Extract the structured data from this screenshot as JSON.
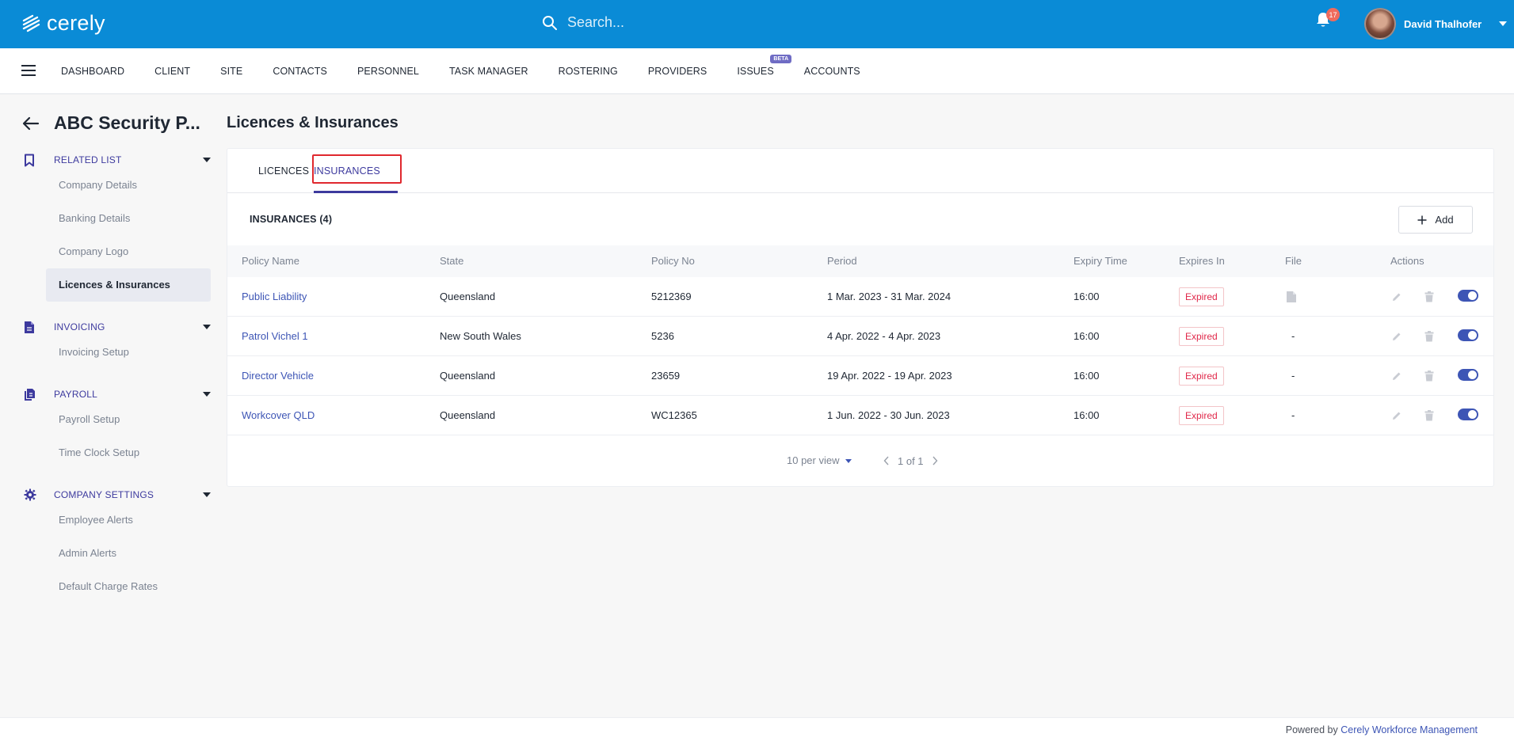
{
  "app": {
    "brand": "cerely",
    "search_placeholder": "Search...",
    "notifications_count": "17",
    "user_name": "David Thalhofer"
  },
  "nav": {
    "items": [
      "DASHBOARD",
      "CLIENT",
      "SITE",
      "CONTACTS",
      "PERSONNEL",
      "TASK MANAGER",
      "ROSTERING",
      "PROVIDERS",
      "ISSUES",
      "ACCOUNTS"
    ],
    "issues_badge": "BETA"
  },
  "sidebar": {
    "company_title": "ABC Security P...",
    "sections": [
      {
        "label": "RELATED LIST",
        "icon": "bookmark-icon",
        "items": [
          "Company Details",
          "Banking Details",
          "Company Logo",
          "Licences & Insurances"
        ]
      },
      {
        "label": "INVOICING",
        "icon": "document-icon",
        "items": [
          "Invoicing Setup"
        ]
      },
      {
        "label": "PAYROLL",
        "icon": "files-icon",
        "items": [
          "Payroll Setup",
          "Time Clock Setup"
        ]
      },
      {
        "label": "COMPANY SETTINGS",
        "icon": "gear-icon",
        "items": [
          "Employee Alerts",
          "Admin Alerts",
          "Default Charge Rates"
        ]
      }
    ],
    "active_item": "Licences & Insurances"
  },
  "main": {
    "title": "Licences & Insurances",
    "tabs": [
      "LICENCES",
      "INSURANCES"
    ],
    "active_tab": "INSURANCES",
    "list_title": "INSURANCES (4)",
    "add_label": "Add",
    "columns": [
      "Policy Name",
      "State",
      "Policy No",
      "Period",
      "Expiry Time",
      "Expires In",
      "File",
      "Actions"
    ],
    "rows": [
      {
        "policy_name": "Public Liability",
        "state": "Queensland",
        "policy_no": "5212369",
        "period": "1 Mar. 2023 - 31 Mar. 2024",
        "expiry_time": "16:00",
        "expires_in": "Expired",
        "file": "file-icon",
        "file_text": "",
        "enabled": true
      },
      {
        "policy_name": "Patrol Vichel 1",
        "state": "New South Wales",
        "policy_no": "5236",
        "period": "4 Apr. 2022 - 4 Apr. 2023",
        "expiry_time": "16:00",
        "expires_in": "Expired",
        "file": "",
        "file_text": "-",
        "enabled": true
      },
      {
        "policy_name": "Director Vehicle",
        "state": "Queensland",
        "policy_no": "23659",
        "period": "19 Apr. 2022 - 19 Apr. 2023",
        "expiry_time": "16:00",
        "expires_in": "Expired",
        "file": "",
        "file_text": "-",
        "enabled": true
      },
      {
        "policy_name": "Workcover QLD",
        "state": "Queensland",
        "policy_no": "WC12365",
        "period": "1 Jun. 2022 - 30 Jun. 2023",
        "expiry_time": "16:00",
        "expires_in": "Expired",
        "file": "",
        "file_text": "-",
        "enabled": true
      }
    ],
    "pagination": {
      "per_view": "10 per view",
      "page_info": "1 of 1"
    }
  },
  "footer": {
    "prefix": "Powered by ",
    "link": "Cerely Workforce Management"
  },
  "colors": {
    "topbar": "#0a8bd6",
    "accent": "#3d3a9e",
    "link": "#3d55b5",
    "expired": "#e0284a",
    "highlight_box": "#e0282e"
  }
}
